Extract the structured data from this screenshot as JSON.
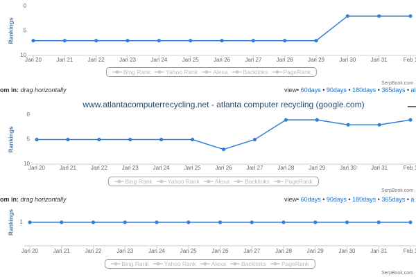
{
  "chart_data": [
    {
      "type": "line",
      "y_axis_label": "Rankings",
      "y_reversed": true,
      "categories": [
        "Jan 20",
        "Jan 21",
        "Jan 22",
        "Jan 23",
        "Jan 24",
        "Jan 25",
        "Jan 26",
        "Jan 27",
        "Jan 28",
        "Jan 29",
        "Jan 30",
        "Jan 31",
        "Feb 1"
      ],
      "series": [
        {
          "name": "Google",
          "color": "#2f7ed8",
          "values": [
            7,
            7,
            7,
            7,
            7,
            7,
            7,
            7,
            7,
            7,
            2,
            2,
            2
          ]
        }
      ],
      "ylim": [
        0,
        10
      ],
      "yticks": [
        0,
        5,
        10
      ],
      "legend_items": [
        "Bing Rank",
        "Yahoo Rank",
        "Alexa",
        "Backlinks",
        "PageRank"
      ],
      "credit": "SerpBook.com",
      "toolbar": {
        "zoom_label": "om in:",
        "zoom_hint": "drag horizontally",
        "view_label": "view•",
        "separator": "•",
        "links": [
          "60days",
          "90days",
          "180days",
          "365days",
          "all"
        ]
      }
    },
    {
      "type": "line",
      "title": "www.atlantacomputerrecycling.net - atlanta computer recycling (google.com)",
      "y_axis_label": "Rankings",
      "y_reversed": true,
      "categories": [
        "Jan 20",
        "Jan 21",
        "Jan 22",
        "Jan 23",
        "Jan 24",
        "Jan 25",
        "Jan 26",
        "Jan 27",
        "Jan 28",
        "Jan 29",
        "Jan 30",
        "Jan 31",
        "Feb 1"
      ],
      "series": [
        {
          "name": "Google",
          "color": "#2f7ed8",
          "values": [
            5,
            5,
            5,
            5,
            5,
            5,
            7,
            5,
            1,
            1,
            2,
            2,
            1
          ]
        }
      ],
      "ylim": [
        0,
        10
      ],
      "yticks": [
        0,
        5,
        10
      ],
      "legend_items": [
        "Bing Rank",
        "Yahoo Rank",
        "Alexa",
        "Backlinks",
        "PageRank"
      ],
      "credit": "SerpBook.com",
      "toolbar": {
        "zoom_label": "om in:",
        "zoom_hint": "drag horizontally",
        "view_label": "view•",
        "separator": "•",
        "links": [
          "60days",
          "90days",
          "180days",
          "365days",
          "a"
        ]
      }
    },
    {
      "type": "line",
      "y_axis_label": "Rankings",
      "y_reversed": true,
      "categories": [
        "Jan 20",
        "Jan 21",
        "Jan 22",
        "Jan 23",
        "Jan 24",
        "Jan 25",
        "Jan 26",
        "Jan 27",
        "Jan 28",
        "Jan 29",
        "Jan 30",
        "Jan 31",
        "Feb 1"
      ],
      "series": [
        {
          "name": "Google",
          "color": "#2f7ed8",
          "values": [
            1,
            1,
            1,
            1,
            1,
            1,
            1,
            1,
            1,
            1,
            1,
            1,
            1
          ]
        }
      ],
      "ylim": [
        0,
        2
      ],
      "yticks": [
        1
      ],
      "legend_items": [
        "Bing Rank",
        "Yahoo Rank",
        "Alexa",
        "Backlinks",
        "PageRank"
      ],
      "credit": "SerpBook.com"
    }
  ]
}
